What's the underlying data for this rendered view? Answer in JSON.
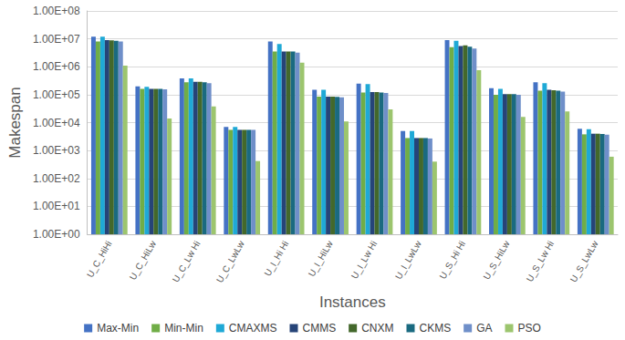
{
  "chart_data": {
    "type": "bar",
    "x_label": "Instances",
    "y_label": "Makespan",
    "categories": [
      "U_C_HiHi",
      "U_C_HiLw",
      "U_C_Lw Hi",
      "U_C_LwLw",
      "U_I_Hi Hi",
      "U_I_HiLw",
      "U_I_Lw Hi",
      "U_I_LwLw",
      "U_S_Hi Hi",
      "U_S_HiLw",
      "U_S_Lw Hi",
      "U_S_LwLw"
    ],
    "series": [
      {
        "name": "Max-Min",
        "color": "#4472c4",
        "values": [
          12000000,
          200000,
          380000,
          7000,
          8000000,
          150000,
          250000,
          5000,
          9000000,
          170000,
          280000,
          6000
        ]
      },
      {
        "name": "Min-Min",
        "color": "#70ad47",
        "values": [
          8000000,
          160000,
          280000,
          5500,
          3500000,
          85000,
          120000,
          2800,
          5000000,
          100000,
          140000,
          3800
        ]
      },
      {
        "name": "CMAXMS",
        "color": "#1fa9d6",
        "values": [
          12000000,
          190000,
          380000,
          7000,
          6500000,
          150000,
          240000,
          5000,
          8500000,
          160000,
          260000,
          5800
        ]
      },
      {
        "name": "CMMS",
        "color": "#264478",
        "values": [
          9000000,
          160000,
          290000,
          5500,
          3500000,
          85000,
          125000,
          2800,
          5500000,
          105000,
          150000,
          4000
        ]
      },
      {
        "name": "CNXM",
        "color": "#43682b",
        "values": [
          8800000,
          160000,
          290000,
          5500,
          3500000,
          85000,
          125000,
          2800,
          5800000,
          105000,
          145000,
          4000
        ]
      },
      {
        "name": "CKMS",
        "color": "#1a6a80",
        "values": [
          8500000,
          160000,
          280000,
          5500,
          3500000,
          83000,
          120000,
          2800,
          5200000,
          105000,
          140000,
          3900
        ]
      },
      {
        "name": "GA",
        "color": "#6f8fc9",
        "values": [
          8000000,
          155000,
          260000,
          5500,
          3200000,
          80000,
          115000,
          2700,
          4500000,
          100000,
          130000,
          3700
        ]
      },
      {
        "name": "PSO",
        "color": "#9cc56e",
        "values": [
          1100000,
          14000,
          38000,
          420,
          1400000,
          11000,
          30000,
          400,
          750000,
          16000,
          25000,
          600
        ]
      }
    ],
    "log": "y",
    "ylim": [
      1,
      100000000
    ],
    "yticks": [
      {
        "value": 1,
        "label": "1.00E+00"
      },
      {
        "value": 10,
        "label": "1.00E+01"
      },
      {
        "value": 100,
        "label": "1.00E+02"
      },
      {
        "value": 1000,
        "label": "1.00E+03"
      },
      {
        "value": 10000,
        "label": "1.00E+04"
      },
      {
        "value": 100000,
        "label": "1.00E+05"
      },
      {
        "value": 1000000,
        "label": "1.00E+06"
      },
      {
        "value": 10000000,
        "label": "1.00E+07"
      },
      {
        "value": 100000000,
        "label": "1.00E+08"
      }
    ],
    "grid": true,
    "legend": "bottom"
  }
}
